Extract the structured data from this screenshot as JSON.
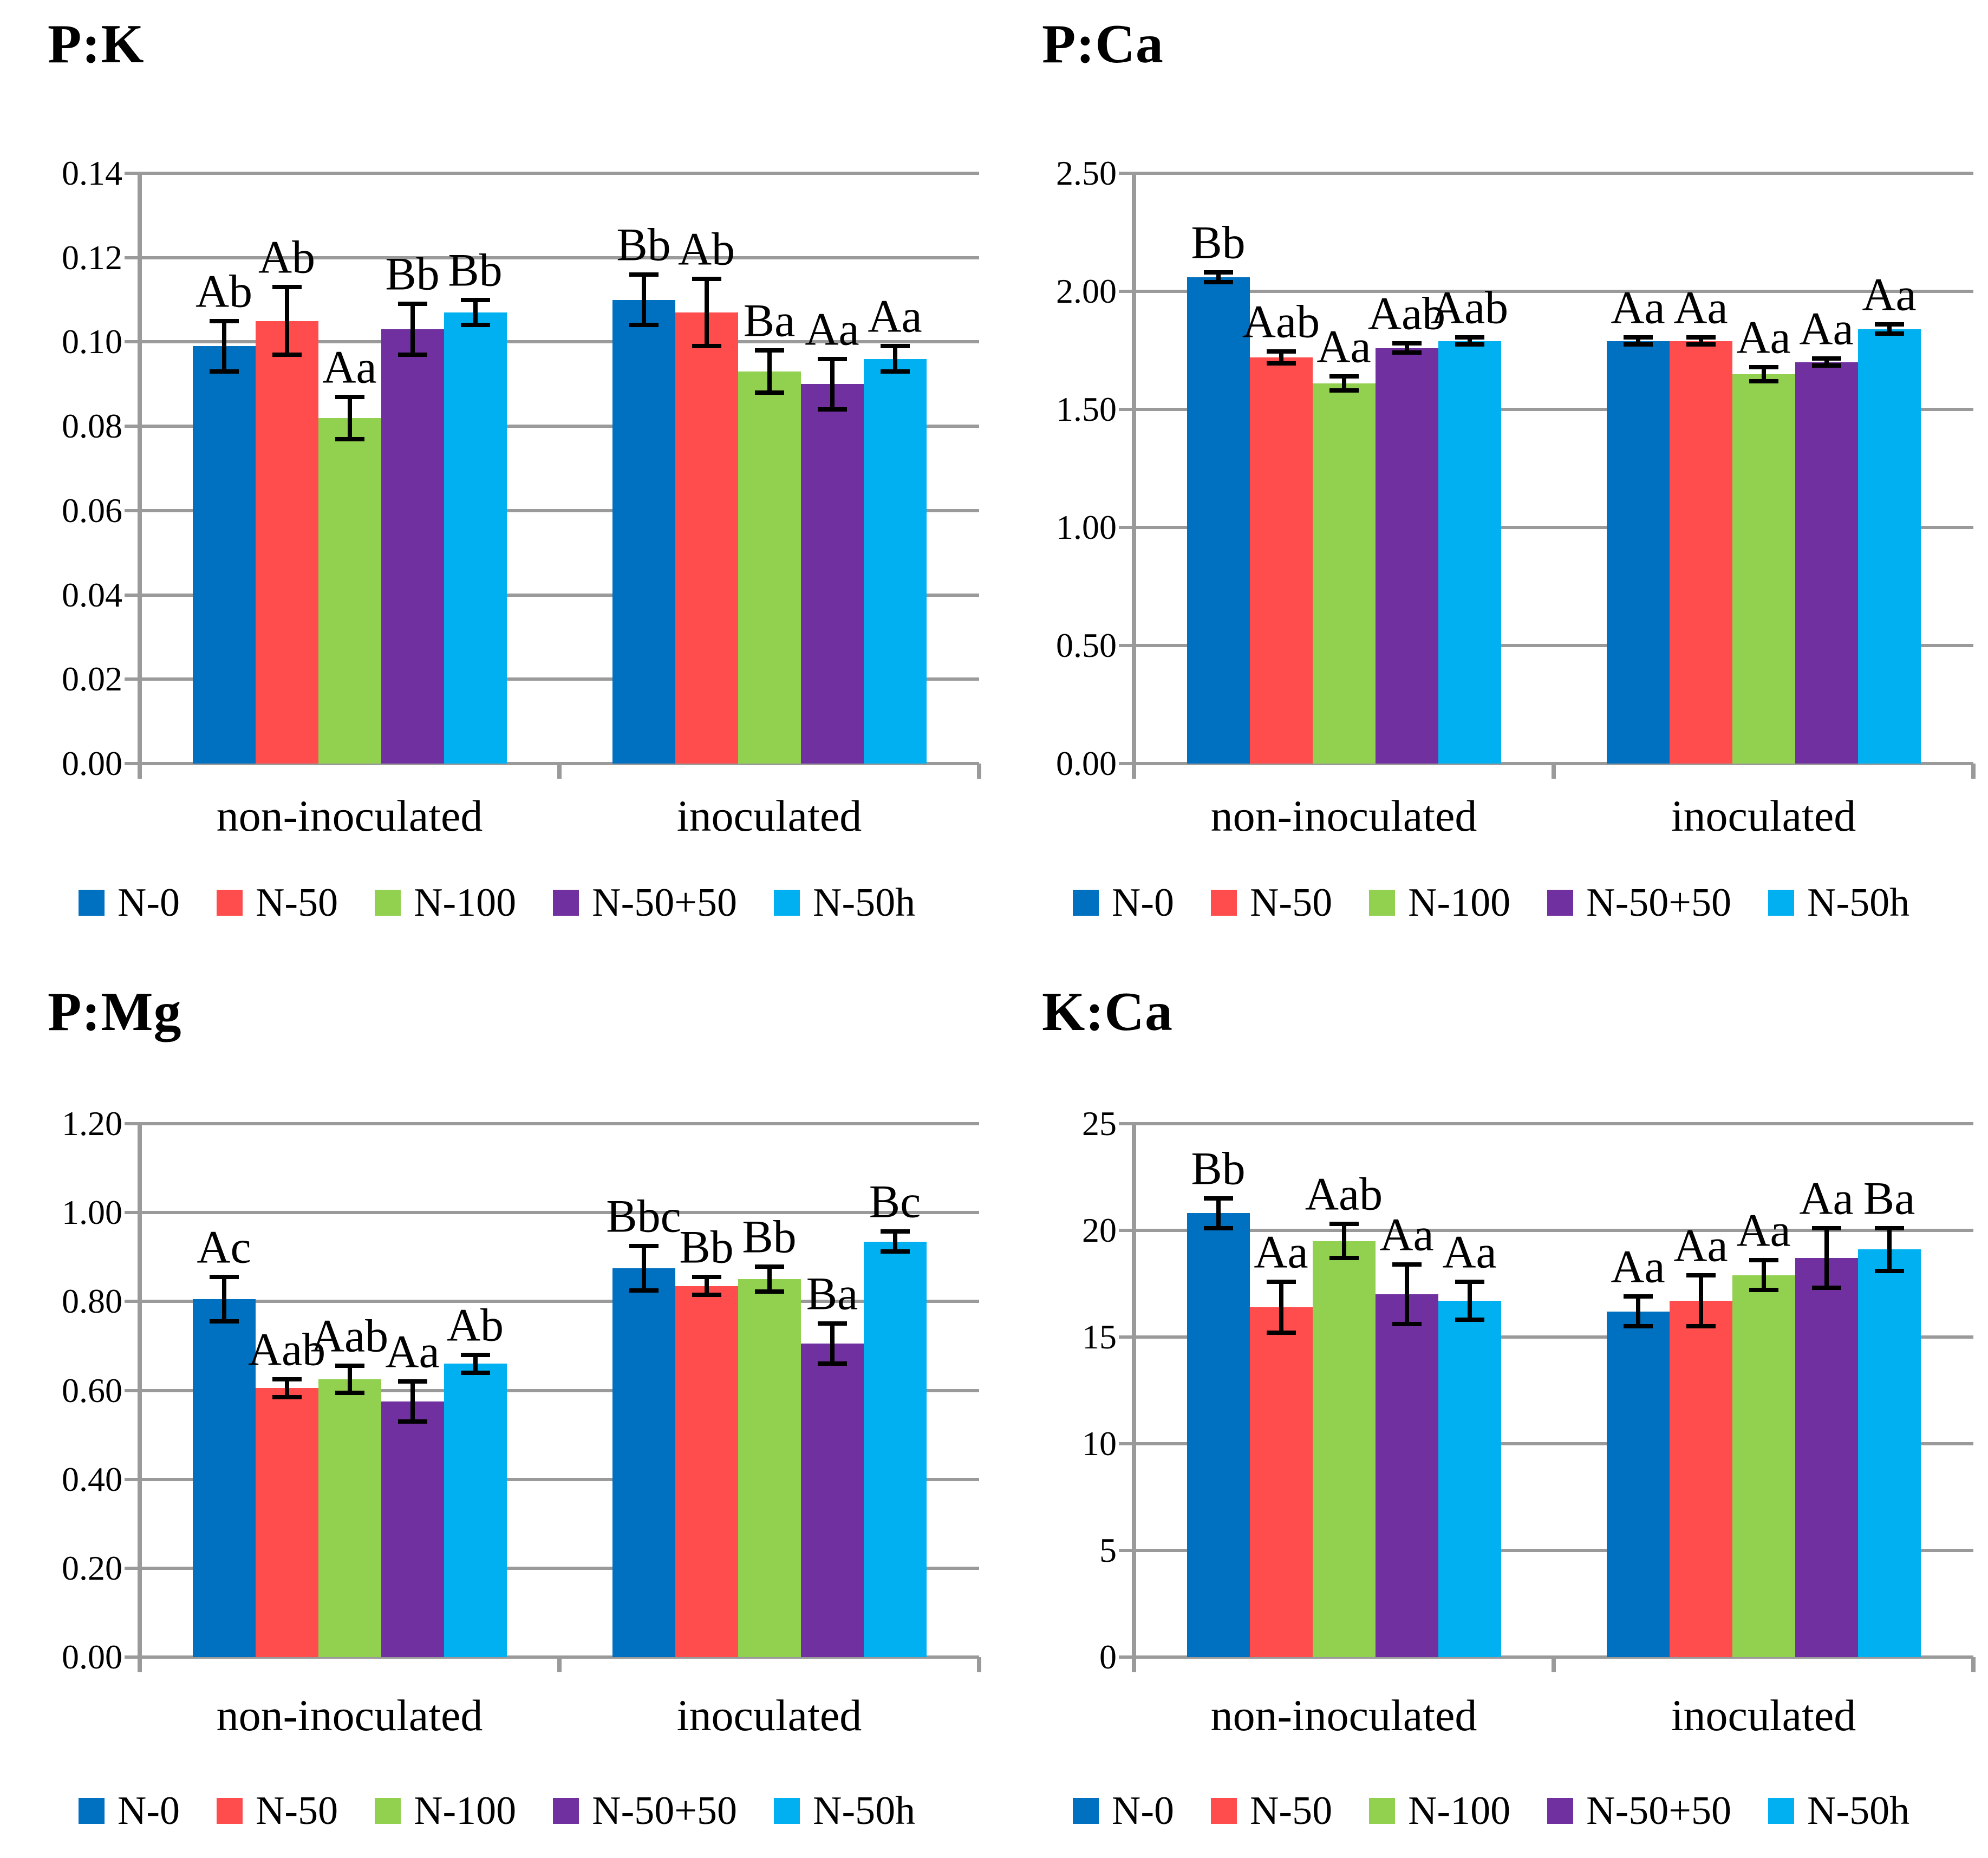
{
  "figure": {
    "background": "#ffffff",
    "grid_color": "#9a9a9a",
    "error_bar_color": "#000000",
    "category_labels": [
      "non-inoculated",
      "inoculated"
    ],
    "legend_items": [
      {
        "label": "N-0",
        "color": "#0070C0"
      },
      {
        "label": "N-50",
        "color": "#FF4D4D"
      },
      {
        "label": "N-100",
        "color": "#92D050"
      },
      {
        "label": "N-50+50",
        "color": "#7030A0"
      },
      {
        "label": "N-50h",
        "color": "#00B0F0"
      }
    ]
  },
  "chart_data": [
    {
      "type": "bar",
      "title": "P:K",
      "xlabel": "",
      "ylabel": "",
      "grid": true,
      "legend_position": "bottom",
      "categories": [
        "non-inoculated",
        "inoculated"
      ],
      "ylim": [
        0,
        0.14
      ],
      "ytick_step": 0.02,
      "ytick_decimals": 2,
      "series": [
        {
          "name": "N-0",
          "color": "#0070C0",
          "values": [
            0.099,
            0.11
          ],
          "errors": [
            0.006,
            0.006
          ],
          "sig_labels": [
            "Ab",
            "Bb"
          ]
        },
        {
          "name": "N-50",
          "color": "#FF4D4D",
          "values": [
            0.105,
            0.107
          ],
          "errors": [
            0.008,
            0.008
          ],
          "sig_labels": [
            "Ab",
            "Ab"
          ]
        },
        {
          "name": "N-100",
          "color": "#92D050",
          "values": [
            0.082,
            0.093
          ],
          "errors": [
            0.005,
            0.005
          ],
          "sig_labels": [
            "Aa",
            "Ba"
          ]
        },
        {
          "name": "N-50+50",
          "color": "#7030A0",
          "values": [
            0.103,
            0.09
          ],
          "errors": [
            0.006,
            0.006
          ],
          "sig_labels": [
            "Bb",
            "Aa"
          ]
        },
        {
          "name": "N-50h",
          "color": "#00B0F0",
          "values": [
            0.107,
            0.096
          ],
          "errors": [
            0.003,
            0.003
          ],
          "sig_labels": [
            "Bb",
            "Aa"
          ]
        }
      ]
    },
    {
      "type": "bar",
      "title": "P:Ca",
      "xlabel": "",
      "ylabel": "",
      "grid": true,
      "legend_position": "bottom",
      "categories": [
        "non-inoculated",
        "inoculated"
      ],
      "ylim": [
        0,
        2.5
      ],
      "ytick_step": 0.5,
      "ytick_decimals": 2,
      "series": [
        {
          "name": "N-0",
          "color": "#0070C0",
          "values": [
            2.06,
            1.79
          ],
          "errors": [
            0.02,
            0.015
          ],
          "sig_labels": [
            "Bb",
            "Aa"
          ]
        },
        {
          "name": "N-50",
          "color": "#FF4D4D",
          "values": [
            1.72,
            1.79
          ],
          "errors": [
            0.025,
            0.015
          ],
          "sig_labels": [
            "Aab",
            "Aa"
          ]
        },
        {
          "name": "N-100",
          "color": "#92D050",
          "values": [
            1.61,
            1.65
          ],
          "errors": [
            0.03,
            0.03
          ],
          "sig_labels": [
            "Aa",
            "Aa"
          ]
        },
        {
          "name": "N-50+50",
          "color": "#7030A0",
          "values": [
            1.76,
            1.7
          ],
          "errors": [
            0.02,
            0.015
          ],
          "sig_labels": [
            "Aab",
            "Aa"
          ]
        },
        {
          "name": "N-50h",
          "color": "#00B0F0",
          "values": [
            1.79,
            1.84
          ],
          "errors": [
            0.015,
            0.02
          ],
          "sig_labels": [
            "Aab",
            "Aa"
          ]
        }
      ]
    },
    {
      "type": "bar",
      "title": "P:Mg",
      "xlabel": "",
      "ylabel": "",
      "grid": true,
      "legend_position": "bottom",
      "categories": [
        "non-inoculated",
        "inoculated"
      ],
      "ylim": [
        0,
        1.2
      ],
      "ytick_step": 0.2,
      "ytick_decimals": 2,
      "series": [
        {
          "name": "N-0",
          "color": "#0070C0",
          "values": [
            0.805,
            0.875
          ],
          "errors": [
            0.05,
            0.05
          ],
          "sig_labels": [
            "Ac",
            "Bbc"
          ]
        },
        {
          "name": "N-50",
          "color": "#FF4D4D",
          "values": [
            0.605,
            0.835
          ],
          "errors": [
            0.02,
            0.02
          ],
          "sig_labels": [
            "Aab",
            "Bb"
          ]
        },
        {
          "name": "N-100",
          "color": "#92D050",
          "values": [
            0.625,
            0.85
          ],
          "errors": [
            0.03,
            0.028
          ],
          "sig_labels": [
            "Aab",
            "Bb"
          ]
        },
        {
          "name": "N-50+50",
          "color": "#7030A0",
          "values": [
            0.575,
            0.705
          ],
          "errors": [
            0.045,
            0.045
          ],
          "sig_labels": [
            "Aa",
            "Ba"
          ]
        },
        {
          "name": "N-50h",
          "color": "#00B0F0",
          "values": [
            0.66,
            0.935
          ],
          "errors": [
            0.02,
            0.022
          ],
          "sig_labels": [
            "Ab",
            "Bc"
          ]
        }
      ]
    },
    {
      "type": "bar",
      "title": "K:Ca",
      "xlabel": "",
      "ylabel": "",
      "grid": true,
      "legend_position": "bottom",
      "categories": [
        "non-inoculated",
        "inoculated"
      ],
      "ylim": [
        0,
        25
      ],
      "ytick_step": 5,
      "ytick_decimals": 0,
      "series": [
        {
          "name": "N-0",
          "color": "#0070C0",
          "values": [
            20.8,
            16.2
          ],
          "errors": [
            0.7,
            0.7
          ],
          "sig_labels": [
            "Bb",
            "Aa"
          ]
        },
        {
          "name": "N-50",
          "color": "#FF4D4D",
          "values": [
            16.4,
            16.7
          ],
          "errors": [
            1.2,
            1.2
          ],
          "sig_labels": [
            "Aa",
            "Aa"
          ]
        },
        {
          "name": "N-100",
          "color": "#92D050",
          "values": [
            19.5,
            17.9
          ],
          "errors": [
            0.8,
            0.7
          ],
          "sig_labels": [
            "Aab",
            "Aa"
          ]
        },
        {
          "name": "N-50+50",
          "color": "#7030A0",
          "values": [
            17.0,
            18.7
          ],
          "errors": [
            1.4,
            1.4
          ],
          "sig_labels": [
            "Aa",
            "Aa"
          ]
        },
        {
          "name": "N-50h",
          "color": "#00B0F0",
          "values": [
            16.7,
            19.1
          ],
          "errors": [
            0.9,
            1.0
          ],
          "sig_labels": [
            "Aa",
            "Ba"
          ]
        }
      ]
    }
  ]
}
